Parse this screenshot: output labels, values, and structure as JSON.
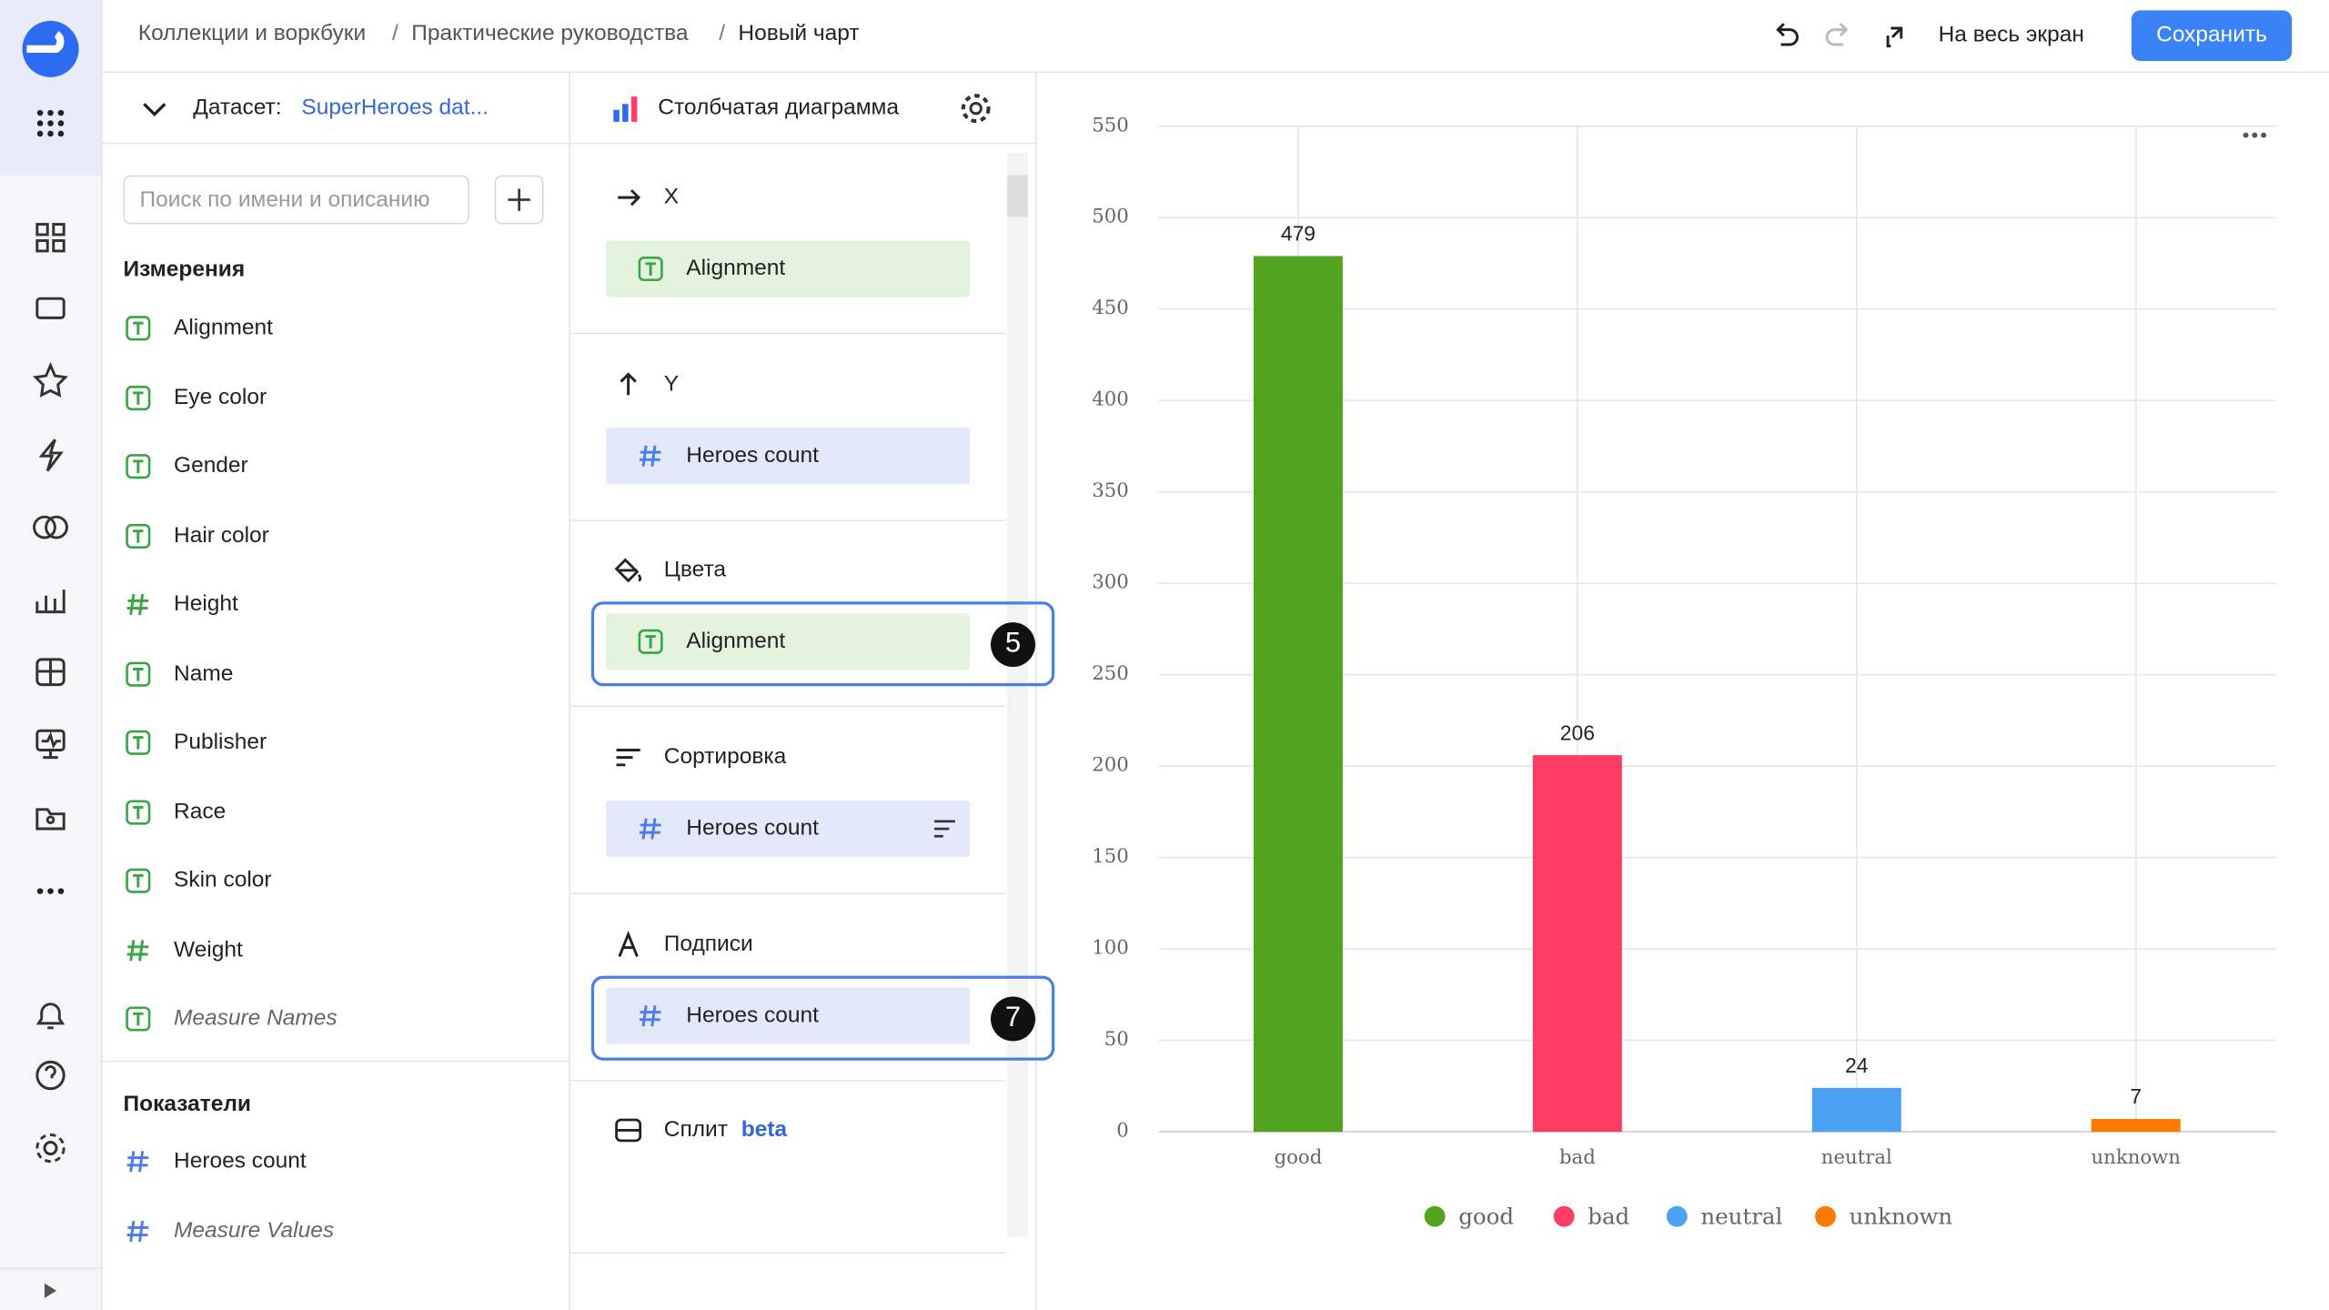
{
  "header": {
    "breadcrumbs": [
      "Коллекции и воркбуки",
      "Практические руководства",
      "Новый чарт"
    ],
    "fullscreen": "На весь экран",
    "save": "Сохранить"
  },
  "dataset": {
    "label": "Датасет:",
    "name": "SuperHeroes dat...",
    "search_placeholder": "Поиск по имени и описанию",
    "dimensions_title": "Измерения",
    "dimensions": [
      "Alignment",
      "Eye color",
      "Gender",
      "Hair color",
      "Height",
      "Name",
      "Publisher",
      "Race",
      "Skin color",
      "Weight",
      "Measure Names"
    ],
    "measures_title": "Показатели",
    "measures": [
      "Heroes count",
      "Measure Values"
    ]
  },
  "wizard": {
    "chart_type": "Столбчатая диаграмма",
    "sections": [
      {
        "title": "X",
        "field": "Alignment"
      },
      {
        "title": "Y",
        "field": "Heroes count"
      },
      {
        "title": "Цвета",
        "field": "Alignment",
        "badge": 5
      },
      {
        "title": "Сортировка",
        "field": "Heroes count"
      },
      {
        "title": "Подписи",
        "field": "Heroes count",
        "badge": 7
      }
    ],
    "split": "Сплит",
    "split_tag": "beta"
  },
  "chart_data": {
    "type": "bar",
    "categories": [
      "good",
      "bad",
      "neutral",
      "unknown"
    ],
    "values": [
      479,
      206,
      24,
      7
    ],
    "colors": [
      "#52a41f",
      "#ff3d64",
      "#4aa1f2",
      "#ff7a00"
    ],
    "ylim": [
      0,
      550
    ],
    "yticks": [
      0,
      50,
      100,
      150,
      200,
      250,
      300,
      350,
      400,
      450,
      500,
      550
    ],
    "grid": true,
    "data_labels": true,
    "legend": "bottom"
  }
}
